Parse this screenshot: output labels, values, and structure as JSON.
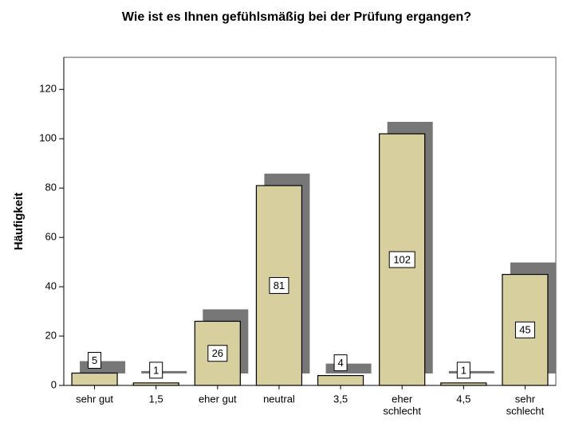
{
  "chart_data": {
    "type": "bar",
    "title": "Wie ist es Ihnen gefühlsmäßig bei der Prüfung ergangen?",
    "y_label": "Häufigkeit",
    "categories": [
      [
        "sehr gut"
      ],
      [
        "1,5"
      ],
      [
        "eher gut"
      ],
      [
        "neutral"
      ],
      [
        "3,5"
      ],
      [
        "eher",
        "schlecht"
      ],
      [
        "4,5"
      ],
      [
        "sehr",
        "schlecht"
      ]
    ],
    "values": [
      5,
      1,
      26,
      81,
      4,
      102,
      1,
      45
    ],
    "color": "#d8cf9e",
    "shadow_color": "#777777",
    "ylim": [
      0,
      133
    ],
    "yticks": [
      0,
      20,
      40,
      60,
      80,
      100,
      120
    ]
  }
}
